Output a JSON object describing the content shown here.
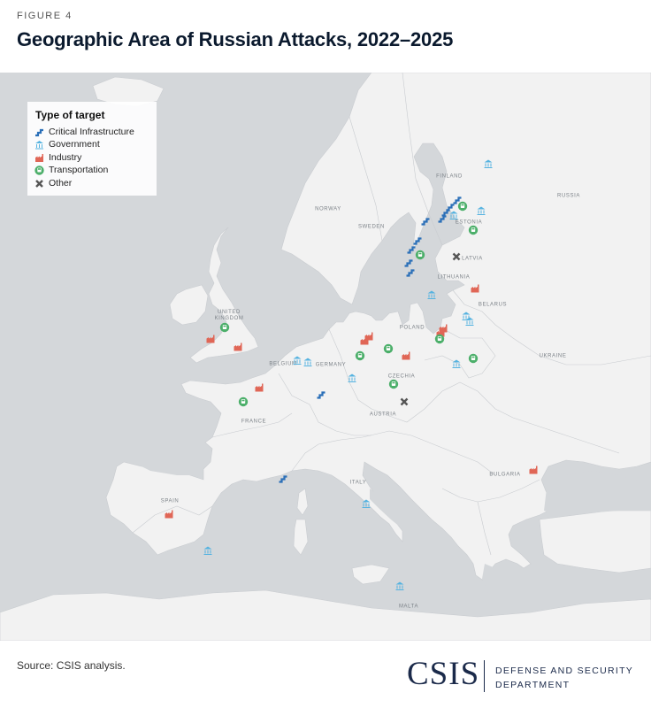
{
  "header": {
    "figure_label": "FIGURE 4",
    "title": "Geographic Area of Russian Attacks, 2022–2025"
  },
  "legend": {
    "title": "Type of target",
    "items": [
      {
        "label": "Critical Infrastructure",
        "icon": "pipe-icon",
        "color": "#2a6fb8"
      },
      {
        "label": "Government",
        "icon": "government-building-icon",
        "color": "#56b3e0"
      },
      {
        "label": "Industry",
        "icon": "factory-icon",
        "color": "#e06656"
      },
      {
        "label": "Transportation",
        "icon": "train-icon",
        "color": "#4caf6a"
      },
      {
        "label": "Other",
        "icon": "x-mark-icon",
        "color": "#555555"
      }
    ]
  },
  "country_labels": {
    "finland": "FINLAND",
    "russia": "RUSSIA",
    "norway": "NORWAY",
    "sweden": "SWEDEN",
    "estonia": "ESTONIA",
    "latvia": "LATVIA",
    "lithuania": "LITHUANIA",
    "belarus": "BELARUS",
    "united_kingdom": "UNITED KINGDOM",
    "poland": "POLAND",
    "belgium": "BELGIUM",
    "germany": "GERMANY",
    "ukraine": "UKRAINE",
    "czechia": "CZECHIA",
    "france": "FRANCE",
    "austria": "AUSTRIA",
    "italy": "ITALY",
    "spain": "SPAIN",
    "bulgaria": "BULGARIA",
    "malta": "MALTA"
  },
  "footer": {
    "source": "Source: CSIS analysis.",
    "logo_text": "CSIS",
    "department_line1": "DEFENSE AND SECURITY",
    "department_line2": "DEPARTMENT"
  }
}
